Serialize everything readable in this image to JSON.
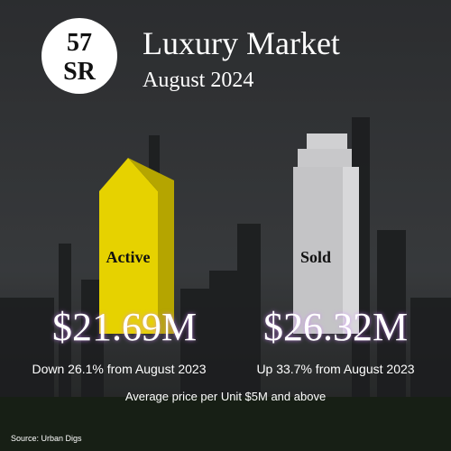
{
  "logo": {
    "line1": "57",
    "line2": "SR"
  },
  "header": {
    "title": "Luxury Market",
    "subtitle": "August 2024"
  },
  "active": {
    "label": "Active",
    "price": "$21.69M",
    "change": "Down 26.1% from August 2023"
  },
  "sold": {
    "label": "Sold",
    "price": "$26.32M",
    "change": "Up 33.7% from August 2023"
  },
  "note": "Average price per Unit $5M and above",
  "source": "Source: Urban Digs"
}
